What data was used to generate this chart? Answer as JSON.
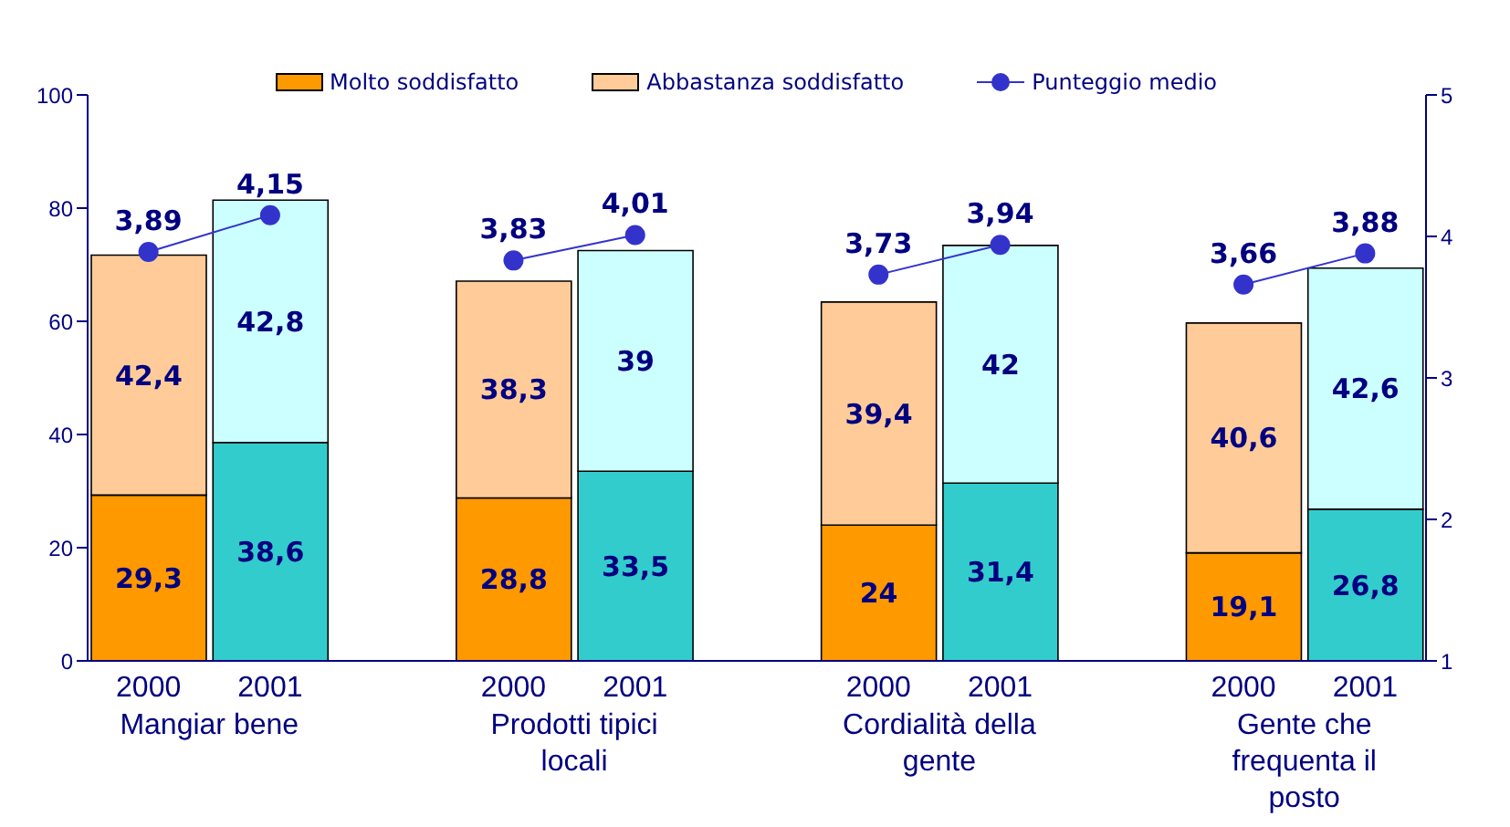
{
  "chart_data": {
    "type": "bar",
    "stacked": true,
    "categories": [
      "2000",
      "2001",
      null,
      "2000",
      "2001",
      null,
      "2000",
      "2001",
      null,
      "2000",
      "2001"
    ],
    "series": [
      {
        "name": "Molto soddisfatto",
        "colors": [
          "#ff9900",
          "#33cccc",
          null,
          "#ff9900",
          "#33cccc",
          null,
          "#ff9900",
          "#33cccc",
          null,
          "#ff9900",
          "#33cccc"
        ],
        "values": [
          29.3,
          38.6,
          null,
          28.8,
          33.5,
          null,
          24,
          31.4,
          null,
          19.1,
          26.8
        ],
        "value_labels": [
          "29,3",
          "38,6",
          null,
          "28,8",
          "33,5",
          null,
          "24",
          "31,4",
          null,
          "19,1",
          "26,8"
        ]
      },
      {
        "name": "Abbastanza soddisfatto",
        "colors": [
          "#ffcc99",
          "#ccffff",
          null,
          "#ffcc99",
          "#ccffff",
          null,
          "#ffcc99",
          "#ccffff",
          null,
          "#ffcc99",
          "#ccffff"
        ],
        "values": [
          42.4,
          42.8,
          null,
          38.3,
          39,
          null,
          39.4,
          42,
          null,
          40.6,
          42.6
        ],
        "value_labels": [
          "42,4",
          "42,8",
          null,
          "38,3",
          "39",
          null,
          "39,4",
          "42",
          null,
          "40,6",
          "42,6"
        ]
      },
      {
        "name": "Punteggio medio",
        "type": "line",
        "axis": "y2",
        "color": "#3333cc",
        "marker": "circle",
        "values": [
          3.89,
          4.15,
          null,
          3.83,
          4.01,
          null,
          3.73,
          3.94,
          null,
          3.66,
          3.88
        ],
        "value_labels": [
          "3,89",
          "4,15",
          null,
          "3,83",
          "4,01",
          null,
          "3,73",
          "3,94",
          null,
          "3,66",
          "3,88"
        ]
      }
    ],
    "ylim": [
      0,
      100
    ],
    "yticks": [
      0,
      20,
      40,
      60,
      80,
      100
    ],
    "y2lim": [
      1,
      5
    ],
    "y2ticks": [
      1,
      2,
      3,
      4,
      5
    ],
    "grid": false,
    "legend": "top",
    "annotations": [
      "Mangiar bene",
      "Prodotti tipici locali",
      "Cordialità della gente",
      "Gente che frequenta il posto"
    ]
  }
}
